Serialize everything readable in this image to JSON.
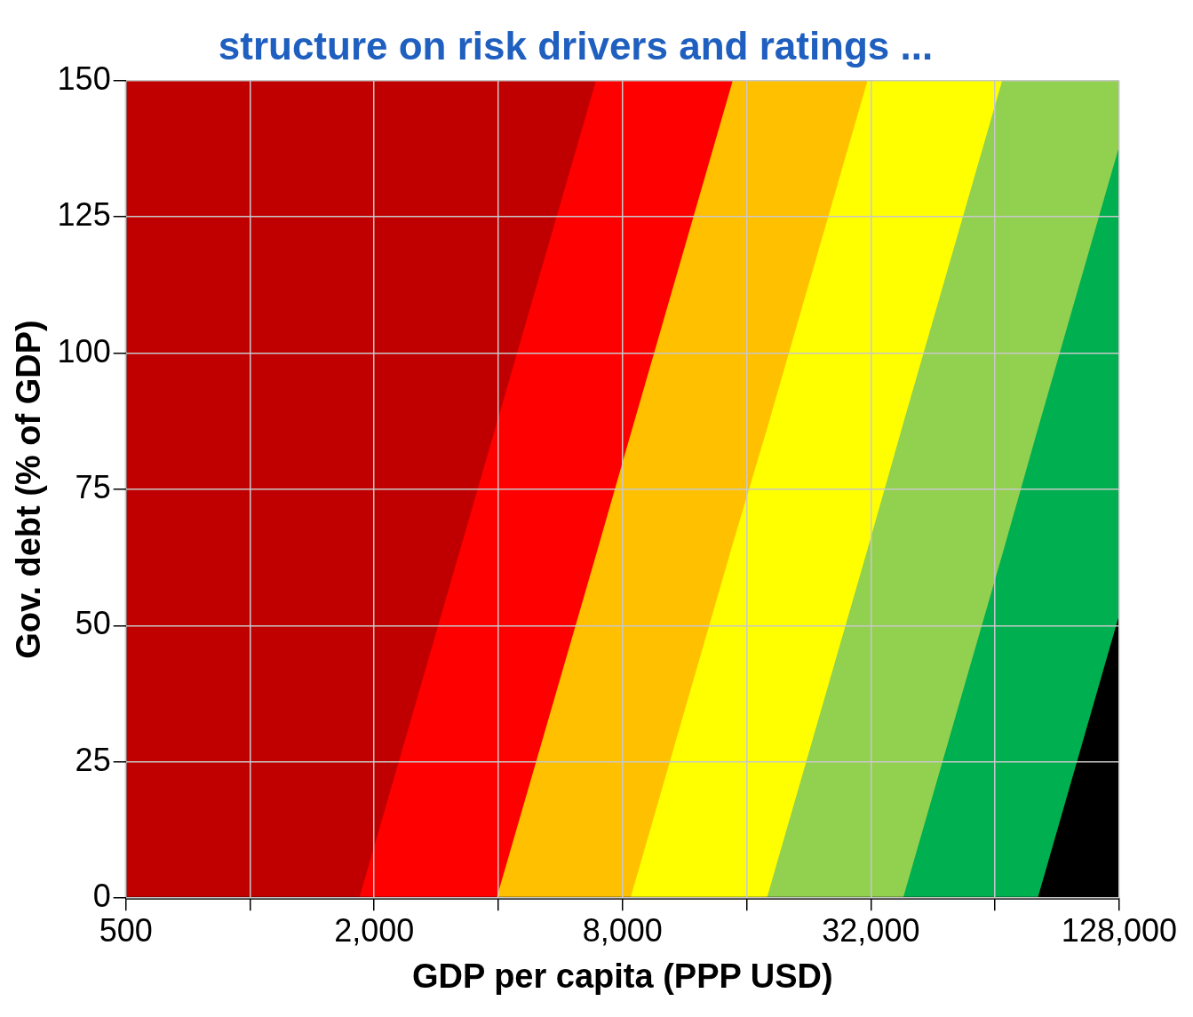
{
  "chart_data": {
    "type": "area",
    "stacked": true,
    "title": "structure on risk drivers and ratings ...",
    "xlabel": "GDP per capita (PPP USD)",
    "ylabel": "Gov. debt (% of GDP)",
    "log": "x",
    "grid": true,
    "legend": false,
    "xlim": [
      500,
      128000
    ],
    "ylim": [
      0,
      150
    ],
    "xticks": [
      500,
      {
        "value": 1000,
        "label": null
      },
      {
        "value": 2000,
        "label": "2,000"
      },
      {
        "value": 4000,
        "label": null
      },
      {
        "value": 8000,
        "label": "8,000"
      },
      {
        "value": 16000,
        "label": null
      },
      {
        "value": 32000,
        "label": "32,000"
      },
      {
        "value": 64000,
        "label": null
      },
      {
        "value": 128000,
        "label": "128,000"
      }
    ],
    "yticks": [
      0,
      25,
      50,
      75,
      100,
      125,
      150
    ],
    "x": [
      500,
      1840,
      3960,
      6900,
      8360,
      14800,
      17900,
      31400,
      38300,
      66600,
      81200,
      128000
    ],
    "series": [
      {
        "color": "#000000",
        "values": [
          null,
          null,
          null,
          null,
          null,
          null,
          null,
          null,
          null,
          null,
          0,
          52
        ]
      },
      {
        "color": "#00b050",
        "values": [
          null,
          null,
          null,
          null,
          null,
          null,
          null,
          null,
          0,
          63,
          86,
          86
        ]
      },
      {
        "color": "#92d050",
        "values": [
          null,
          null,
          null,
          null,
          null,
          null,
          0,
          64,
          87,
          87,
          64,
          12
        ]
      },
      {
        "color": "#ffff00",
        "values": [
          null,
          null,
          null,
          null,
          0,
          65,
          86,
          86,
          63,
          0,
          null,
          null
        ]
      },
      {
        "color": "#ffc000",
        "values": [
          null,
          null,
          0,
          63,
          85,
          85,
          64,
          0,
          null,
          null,
          null,
          null
        ]
      },
      {
        "color": "#ff0000",
        "values": [
          null,
          0,
          87,
          87,
          65,
          0,
          null,
          null,
          null,
          null,
          null,
          null
        ]
      },
      {
        "color": "#c00000",
        "values": [
          150,
          150,
          63,
          0,
          null,
          null,
          null,
          null,
          null,
          null,
          null,
          null
        ]
      }
    ]
  }
}
